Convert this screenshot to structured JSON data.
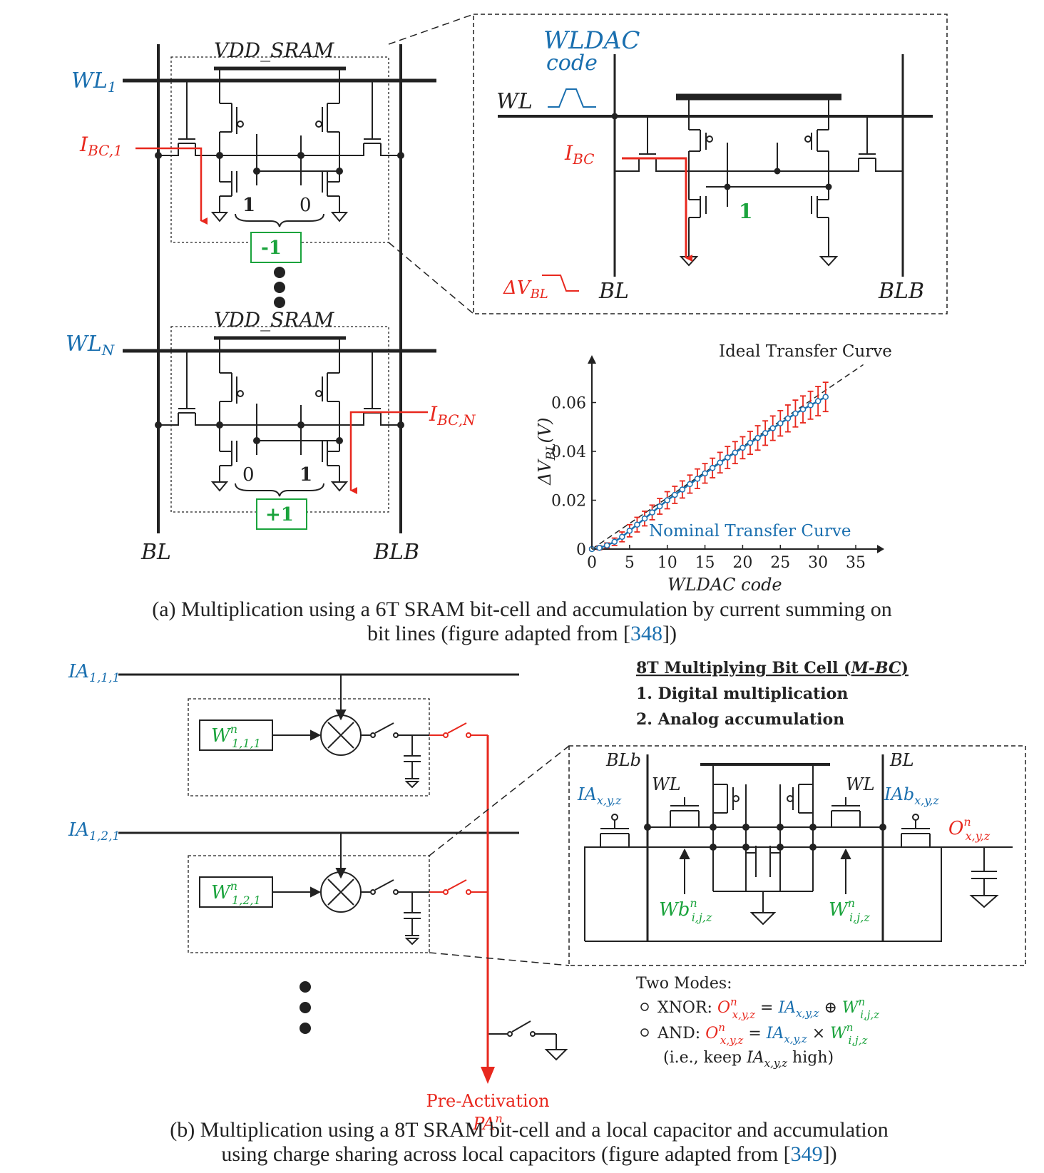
{
  "panel_a": {
    "wl1": "WL",
    "wl1_sub": "1",
    "wln": "WL",
    "wln_sub": "N",
    "vdd_top": "VDD_SRAM",
    "vdd_bottom": "VDD_SRAM",
    "ibc1": "I",
    "ibc1_sub": "BC,1",
    "ibcn": "I",
    "ibcn_sub": "BC,N",
    "top_bit_left": "1",
    "top_bit_right": "0",
    "top_weight": "-1",
    "bot_bit_left": "0",
    "bot_bit_right": "1",
    "bot_weight": "+1",
    "bl": "BL",
    "blb": "BLB"
  },
  "zoom_a": {
    "wldac_line1": "WLDAC",
    "wldac_line2": "code",
    "wl": "WL",
    "ibc": "I",
    "ibc_sub": "BC",
    "bit": "1",
    "dvbl": "ΔV",
    "dvbl_sub": "BL",
    "bl": "BL",
    "blb": "BLB"
  },
  "chart_data": {
    "type": "line",
    "title": "",
    "annotation_ideal": "Ideal Transfer Curve",
    "annotation_nominal": "Nominal Transfer Curve",
    "xlabel": "WLDAC code",
    "ylabel_main": "ΔV",
    "ylabel_sub": "BL",
    "ylabel_unit": "(V)",
    "x_ticks": [
      "0",
      "5",
      "10",
      "15",
      "20",
      "25",
      "30",
      "35"
    ],
    "y_ticks": [
      "0",
      "0.02",
      "0.04",
      "0.06"
    ],
    "xlim": [
      0,
      35
    ],
    "ylim": [
      0,
      0.073
    ],
    "series": [
      {
        "x": [
          0,
          1,
          2,
          3,
          4,
          5,
          6,
          7,
          8,
          9,
          10,
          11,
          12,
          13,
          14,
          15,
          16,
          17,
          18,
          19,
          20,
          21,
          22,
          23,
          24,
          25,
          26,
          27,
          28,
          29,
          30,
          31
        ],
        "values": [
          0.0,
          0.0005,
          0.0015,
          0.003,
          0.005,
          0.0075,
          0.01,
          0.0125,
          0.015,
          0.0175,
          0.02,
          0.0222,
          0.0244,
          0.0266,
          0.0288,
          0.031,
          0.0332,
          0.0354,
          0.0375,
          0.0395,
          0.0415,
          0.0435,
          0.0455,
          0.0475,
          0.0495,
          0.0515,
          0.0535,
          0.0555,
          0.0572,
          0.0589,
          0.0606,
          0.0623
        ],
        "error": [
          0.0005,
          0.0008,
          0.001,
          0.0015,
          0.002,
          0.0025,
          0.003,
          0.003,
          0.003,
          0.0032,
          0.0035,
          0.0035,
          0.0035,
          0.0037,
          0.004,
          0.004,
          0.004,
          0.0042,
          0.0045,
          0.0045,
          0.0045,
          0.0047,
          0.005,
          0.005,
          0.005,
          0.0052,
          0.0055,
          0.0055,
          0.0055,
          0.0057,
          0.006,
          0.006
        ]
      }
    ],
    "ideal_line": {
      "x": [
        0,
        36
      ],
      "values": [
        0,
        0.0755
      ]
    }
  },
  "caption_a": {
    "line1": "(a) Multiplication using a 6T SRAM bit-cell and accumulation by current summing on",
    "line2_pre": "bit lines (figure adapted from [",
    "line2_ref": "348",
    "line2_post": "])"
  },
  "panel_b": {
    "ia1": "IA",
    "ia1_sub": "1,1,1",
    "ia2": "IA",
    "ia2_sub": "1,2,1",
    "w1": "W",
    "w1_sup": "n",
    "w1_sub": "1,1,1",
    "w2": "W",
    "w2_sup": "n",
    "w2_sub": "1,2,1",
    "pre_act": "Pre-Activation",
    "pa": "PA",
    "pa_sup": "n"
  },
  "mbc": {
    "title_pre": "8T Multiplying Bit Cell (",
    "title_it": "M-BC",
    "title_post": ")",
    "item1": "1.  Digital multiplication",
    "item2": "2.  Analog accumulation",
    "blb": "BLb",
    "bl": "BL",
    "wl_left": "WL",
    "wl_right": "WL",
    "ia": "IA",
    "ia_sub": "x,y,z",
    "iab": "IAb",
    "iab_sub": "x,y,z",
    "o": "O",
    "o_sup": "n",
    "o_sub": "x,y,z",
    "wb": "Wb",
    "wb_sup": "n",
    "wb_sub": "i,j,z",
    "w": "W",
    "w_sup": "n",
    "w_sub": "i,j,z"
  },
  "modes": {
    "title": "Two Modes:",
    "xnor_label": "XNOR:",
    "and_label": "AND:",
    "o": "O",
    "o_sup": "n",
    "o_sub": "x,y,z",
    "eq": "=",
    "ia": "IA",
    "ia_sub": "x,y,z",
    "xor_op": "⊕",
    "times_op": "×",
    "w": "W",
    "w_sup": "n",
    "w_sub": "i,j,z",
    "note_pre": "(i.e., keep ",
    "note_ia": "IA",
    "note_sub": "x,y,z",
    "note_post": " high)"
  },
  "caption_b": {
    "line1": "(b) Multiplication using a 8T SRAM bit-cell and a local capacitor and accumulation",
    "line2_pre": "using charge sharing across local capacitors (figure adapted from [",
    "line2_ref": "349",
    "line2_post": "])"
  }
}
